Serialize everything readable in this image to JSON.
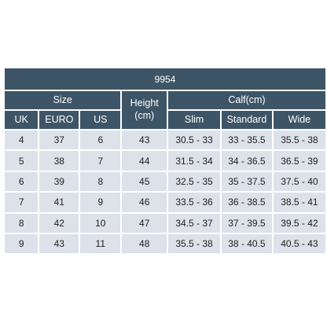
{
  "title": "9954",
  "headers": {
    "size": "Size",
    "height_line1": "Height",
    "height_line2": "(cm)",
    "calf": "Calf(cm)",
    "uk": "UK",
    "euro": "EURO",
    "us": "US",
    "slim": "Slim",
    "standard": "Standard",
    "wide": "Wide"
  },
  "rows": [
    {
      "uk": "4",
      "euro": "37",
      "us": "6",
      "height": "43",
      "slim": "30.5 - 33",
      "standard": "33 - 35.5",
      "wide": "35.5 - 38"
    },
    {
      "uk": "5",
      "euro": "38",
      "us": "7",
      "height": "44",
      "slim": "31.5 - 34",
      "standard": "34 - 36.5",
      "wide": "36.5 - 39"
    },
    {
      "uk": "6",
      "euro": "39",
      "us": "8",
      "height": "45",
      "slim": "32.5 - 35",
      "standard": "35 - 37.5",
      "wide": "37.5 - 40"
    },
    {
      "uk": "7",
      "euro": "41",
      "us": "9",
      "height": "46",
      "slim": "33.5 - 36",
      "standard": "36 - 38.5",
      "wide": "38.5 - 41"
    },
    {
      "uk": "8",
      "euro": "42",
      "us": "10",
      "height": "47",
      "slim": "34.5 - 37",
      "standard": "37 - 39.5",
      "wide": "39.5 - 42"
    },
    {
      "uk": "9",
      "euro": "43",
      "us": "11",
      "height": "48",
      "slim": "35.5 - 38",
      "standard": "38 - 40.5",
      "wide": "40.5 - 43"
    }
  ]
}
